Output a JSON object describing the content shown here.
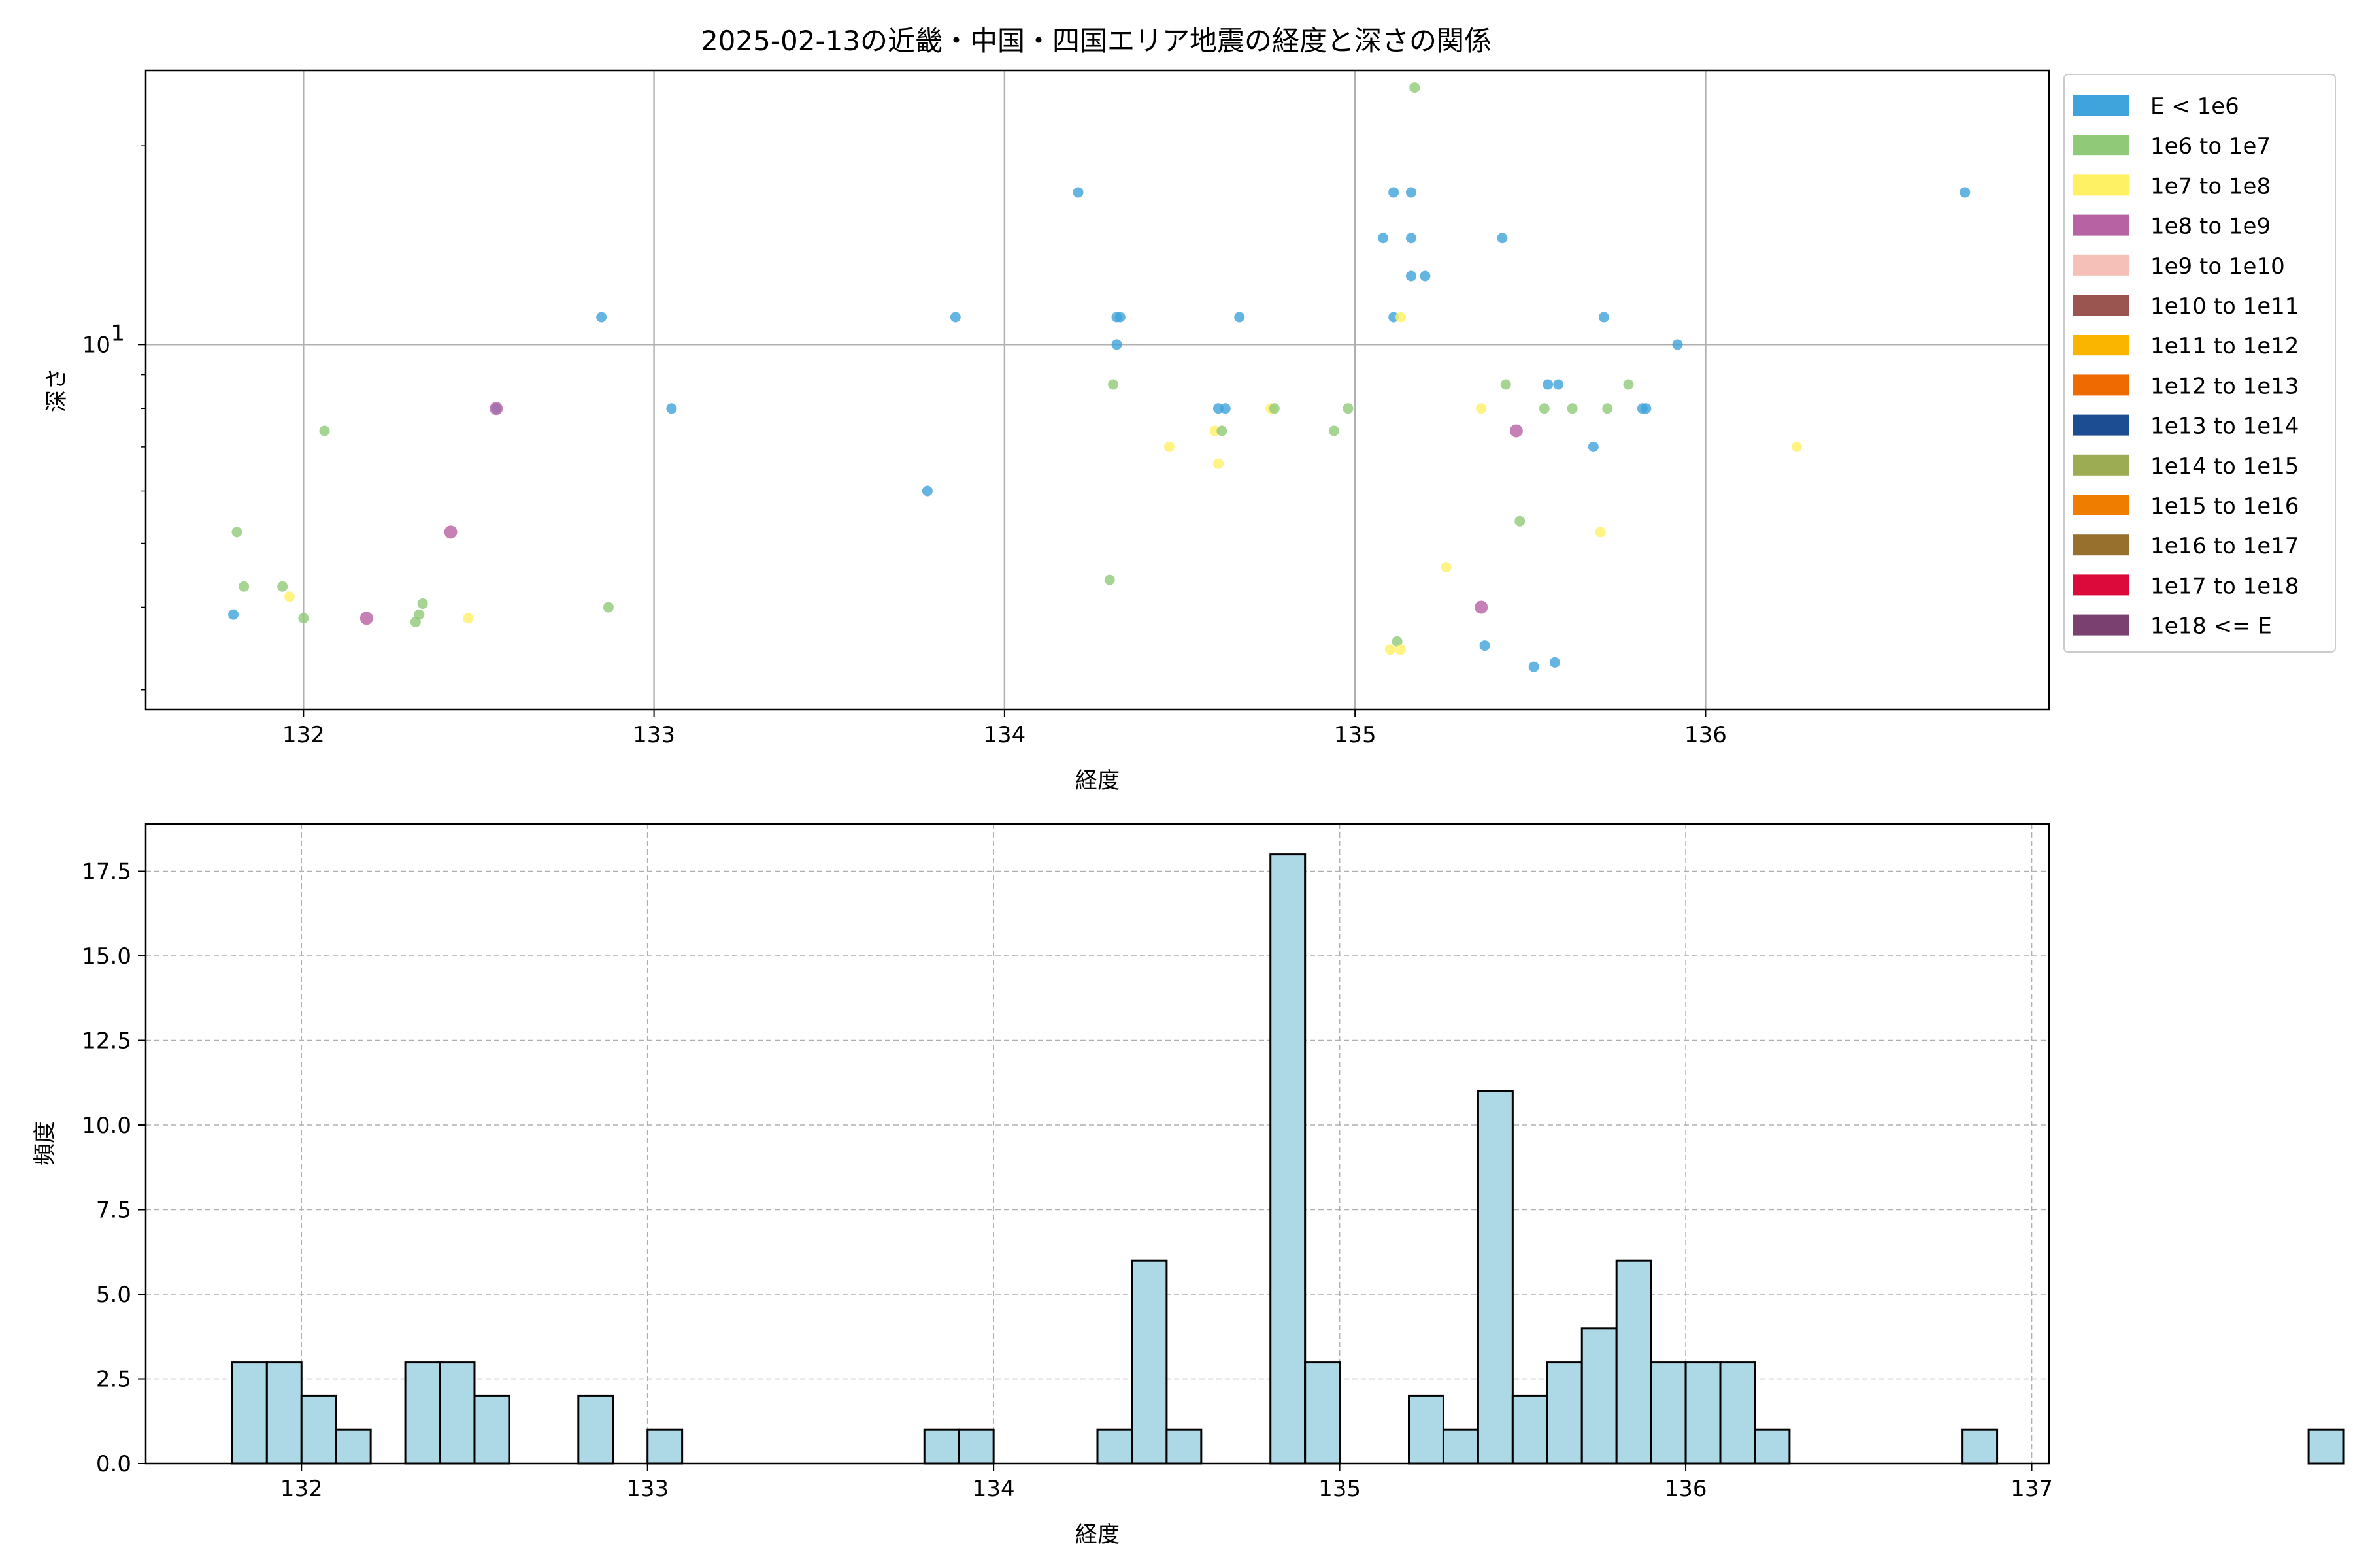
{
  "chart_data": [
    {
      "type": "scatter",
      "title": "2025-02-13の近畿・中国・四国エリア地震の経度と深さの関係",
      "xlabel": "経度",
      "ylabel": "深さ",
      "xlim": [
        131.55,
        136.98
      ],
      "ylim": [
        2.8,
        26
      ],
      "yscale": "log",
      "xticks": [
        "132",
        "133",
        "134",
        "135",
        "136"
      ],
      "yticks": [
        {
          "value": 10,
          "label": "10",
          "exp": "1"
        }
      ],
      "grid": true,
      "legend": {
        "placement": "outside-right",
        "entries": [
          {
            "label": "E < 1e6",
            "color": "#3fa3dc"
          },
          {
            "label": "1e6 to 1e7",
            "color": "#90c978"
          },
          {
            "label": "1e7 to 1e8",
            "color": "#fff064"
          },
          {
            "label": "1e8 to 1e9",
            "color": "#b662a3"
          },
          {
            "label": "1e9 to 1e10",
            "color": "#f5c0b8"
          },
          {
            "label": "1e10 to 1e11",
            "color": "#9a5550"
          },
          {
            "label": "1e11 to 1e12",
            "color": "#f9b500"
          },
          {
            "label": "1e12 to 1e13",
            "color": "#ef6a00"
          },
          {
            "label": "1e13 to 1e14",
            "color": "#1c4c92"
          },
          {
            "label": "1e14 to 1e15",
            "color": "#9cac52"
          },
          {
            "label": "1e15 to 1e16",
            "color": "#ef7e00"
          },
          {
            "label": "1e16 to 1e17",
            "color": "#97702e"
          },
          {
            "label": "1e17 to 1e18",
            "color": "#dc0a3a"
          },
          {
            "label": "1e18 <= E",
            "color": "#7a4070"
          }
        ]
      },
      "points": [
        {
          "x": 131.8,
          "y": 3.9,
          "c": 0
        },
        {
          "x": 131.81,
          "y": 5.2,
          "c": 1
        },
        {
          "x": 131.83,
          "y": 4.3,
          "c": 1
        },
        {
          "x": 131.94,
          "y": 4.3,
          "c": 1
        },
        {
          "x": 131.96,
          "y": 4.15,
          "c": 2
        },
        {
          "x": 132.0,
          "y": 3.85,
          "c": 1
        },
        {
          "x": 132.06,
          "y": 7.4,
          "c": 1
        },
        {
          "x": 132.18,
          "y": 3.85,
          "c": 3
        },
        {
          "x": 132.32,
          "y": 3.8,
          "c": 1
        },
        {
          "x": 132.33,
          "y": 3.9,
          "c": 1
        },
        {
          "x": 132.34,
          "y": 4.05,
          "c": 1
        },
        {
          "x": 132.42,
          "y": 5.2,
          "c": 3
        },
        {
          "x": 132.47,
          "y": 3.85,
          "c": 2
        },
        {
          "x": 132.55,
          "y": 8.0,
          "c": 0
        },
        {
          "x": 132.55,
          "y": 8.0,
          "c": 3
        },
        {
          "x": 132.85,
          "y": 11.0,
          "c": 0
        },
        {
          "x": 132.87,
          "y": 4.0,
          "c": 1
        },
        {
          "x": 133.05,
          "y": 8.0,
          "c": 0
        },
        {
          "x": 133.78,
          "y": 6.0,
          "c": 0
        },
        {
          "x": 133.86,
          "y": 11.0,
          "c": 0
        },
        {
          "x": 134.21,
          "y": 17.0,
          "c": 0
        },
        {
          "x": 134.3,
          "y": 4.4,
          "c": 1
        },
        {
          "x": 134.31,
          "y": 8.7,
          "c": 1
        },
        {
          "x": 134.32,
          "y": 10.0,
          "c": 0
        },
        {
          "x": 134.32,
          "y": 11.0,
          "c": 0
        },
        {
          "x": 134.33,
          "y": 11.0,
          "c": 0
        },
        {
          "x": 134.47,
          "y": 7.0,
          "c": 2
        },
        {
          "x": 134.6,
          "y": 7.4,
          "c": 2
        },
        {
          "x": 134.61,
          "y": 6.6,
          "c": 2
        },
        {
          "x": 134.61,
          "y": 8.0,
          "c": 0
        },
        {
          "x": 134.62,
          "y": 7.4,
          "c": 1
        },
        {
          "x": 134.63,
          "y": 8.0,
          "c": 0
        },
        {
          "x": 134.67,
          "y": 11.0,
          "c": 0
        },
        {
          "x": 134.76,
          "y": 8.0,
          "c": 2
        },
        {
          "x": 134.77,
          "y": 8.0,
          "c": 1
        },
        {
          "x": 134.94,
          "y": 7.4,
          "c": 1
        },
        {
          "x": 134.98,
          "y": 8.0,
          "c": 1
        },
        {
          "x": 135.08,
          "y": 14.5,
          "c": 0
        },
        {
          "x": 135.1,
          "y": 3.45,
          "c": 2
        },
        {
          "x": 135.11,
          "y": 17.0,
          "c": 0
        },
        {
          "x": 135.11,
          "y": 11.0,
          "c": 0
        },
        {
          "x": 135.12,
          "y": 3.55,
          "c": 1
        },
        {
          "x": 135.13,
          "y": 3.45,
          "c": 2
        },
        {
          "x": 135.13,
          "y": 11.0,
          "c": 2
        },
        {
          "x": 135.16,
          "y": 17.0,
          "c": 0
        },
        {
          "x": 135.16,
          "y": 14.5,
          "c": 0
        },
        {
          "x": 135.16,
          "y": 12.7,
          "c": 0
        },
        {
          "x": 135.17,
          "y": 24.5,
          "c": 1
        },
        {
          "x": 135.2,
          "y": 12.7,
          "c": 0
        },
        {
          "x": 135.26,
          "y": 4.6,
          "c": 2
        },
        {
          "x": 135.36,
          "y": 8.0,
          "c": 2
        },
        {
          "x": 135.36,
          "y": 4.0,
          "c": 3
        },
        {
          "x": 135.37,
          "y": 3.5,
          "c": 0
        },
        {
          "x": 135.42,
          "y": 14.5,
          "c": 0
        },
        {
          "x": 135.43,
          "y": 8.7,
          "c": 1
        },
        {
          "x": 135.46,
          "y": 7.4,
          "c": 3
        },
        {
          "x": 135.47,
          "y": 5.4,
          "c": 1
        },
        {
          "x": 135.51,
          "y": 3.25,
          "c": 0
        },
        {
          "x": 135.54,
          "y": 8.0,
          "c": 1
        },
        {
          "x": 135.55,
          "y": 8.7,
          "c": 0
        },
        {
          "x": 135.57,
          "y": 3.3,
          "c": 0
        },
        {
          "x": 135.58,
          "y": 8.7,
          "c": 0
        },
        {
          "x": 135.62,
          "y": 8.0,
          "c": 1
        },
        {
          "x": 135.68,
          "y": 7.0,
          "c": 0
        },
        {
          "x": 135.7,
          "y": 5.2,
          "c": 2
        },
        {
          "x": 135.71,
          "y": 11.0,
          "c": 0
        },
        {
          "x": 135.72,
          "y": 8.0,
          "c": 1
        },
        {
          "x": 135.78,
          "y": 8.7,
          "c": 1
        },
        {
          "x": 135.82,
          "y": 8.0,
          "c": 0
        },
        {
          "x": 135.83,
          "y": 8.0,
          "c": 0
        },
        {
          "x": 135.92,
          "y": 10.0,
          "c": 0
        },
        {
          "x": 136.26,
          "y": 7.0,
          "c": 2
        },
        {
          "x": 136.74,
          "y": 17.0,
          "c": 0
        }
      ]
    },
    {
      "type": "bar",
      "subtype": "histogram",
      "xlabel": "経度",
      "ylabel": "頻度",
      "xlim": [
        131.55,
        137.05
      ],
      "ylim": [
        0,
        18.9
      ],
      "xticks": [
        "132",
        "133",
        "134",
        "135",
        "136",
        "137"
      ],
      "yticks": [
        "0.0",
        "2.5",
        "5.0",
        "7.5",
        "10.0",
        "12.5",
        "15.0",
        "17.5"
      ],
      "grid": true,
      "bar_color": "#add8e6",
      "bin_start": 131.8,
      "bin_width": 0.1,
      "counts": [
        3,
        3,
        2,
        1,
        0,
        3,
        3,
        2,
        0,
        0,
        2,
        0,
        1,
        0,
        0,
        0,
        0,
        0,
        0,
        0,
        1,
        1,
        0,
        0,
        0,
        1,
        6,
        1,
        0,
        0,
        18,
        3,
        0,
        0,
        2,
        1,
        11,
        2,
        3,
        4,
        6,
        3,
        3,
        3,
        1,
        0,
        0,
        0,
        0,
        0,
        1,
        0,
        0,
        0,
        0,
        0,
        0,
        0,
        0,
        0,
        1
      ]
    }
  ]
}
